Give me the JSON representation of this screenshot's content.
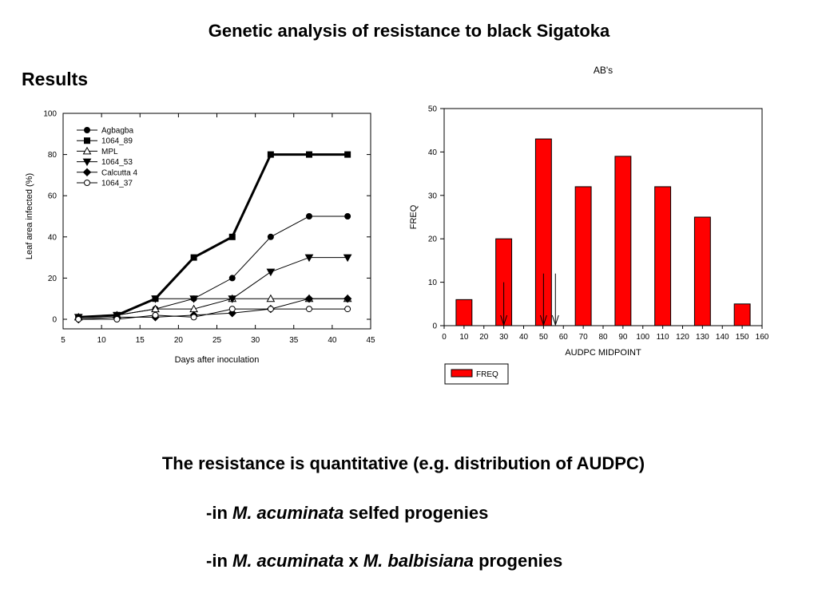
{
  "slide": {
    "title": "Genetic analysis of resistance to black Sigatoka",
    "section": "Results",
    "summary": "The resistance is quantitative (e.g. distribution of AUDPC)",
    "point1": {
      "prefix": "-in ",
      "species": "M. acuminata",
      "suffix": " selfed progenies"
    },
    "point2": {
      "prefix": "-in ",
      "species1": "M. acuminata",
      "joiner": " x ",
      "species2": "M. balbisiana",
      "suffix": "  progenies"
    }
  },
  "chart_data": [
    {
      "type": "line",
      "title": "",
      "xlabel": "Days after inoculation",
      "ylabel": "Leaf area infected (%)",
      "xlim": [
        5,
        45
      ],
      "ylim": [
        0,
        100
      ],
      "xticks": [
        5,
        10,
        15,
        20,
        25,
        30,
        35,
        40,
        45
      ],
      "yticks": [
        0,
        20,
        40,
        60,
        80,
        100
      ],
      "legend_position": "top-left",
      "x": [
        7,
        12,
        17,
        22,
        27,
        32,
        37,
        42
      ],
      "series": [
        {
          "name": "Agbagba",
          "marker": "circle-filled",
          "values": [
            1,
            2,
            5,
            10,
            20,
            40,
            50,
            50
          ]
        },
        {
          "name": "1064_89",
          "marker": "square-filled",
          "values": [
            1,
            2,
            10,
            30,
            40,
            80,
            80,
            80
          ]
        },
        {
          "name": "MPL",
          "marker": "triangle-up-open",
          "values": [
            1,
            2,
            5,
            5,
            10,
            10,
            10,
            10
          ]
        },
        {
          "name": "1064_53",
          "marker": "triangle-down-filled",
          "values": [
            1,
            2,
            10,
            10,
            10,
            23,
            30,
            30
          ]
        },
        {
          "name": "Calcutta 4",
          "marker": "diamond-filled",
          "values": [
            0,
            1,
            1,
            2,
            3,
            5,
            10,
            10
          ]
        },
        {
          "name": "1064_37",
          "marker": "circle-open",
          "values": [
            0,
            0,
            2,
            1,
            5,
            5,
            5,
            5
          ]
        }
      ]
    },
    {
      "type": "bar",
      "title": "AB's",
      "xlabel": "AUDPC MIDPOINT",
      "ylabel": "FREQ",
      "xlim": [
        0,
        160
      ],
      "ylim": [
        0,
        50
      ],
      "xticks": [
        0,
        10,
        20,
        30,
        40,
        50,
        60,
        70,
        80,
        90,
        100,
        110,
        120,
        130,
        140,
        150,
        160
      ],
      "yticks": [
        0,
        10,
        20,
        30,
        40,
        50
      ],
      "bar_width": 8,
      "bar_color": "#ff0000",
      "legend": "FREQ",
      "legend_position": "below",
      "x": [
        10,
        30,
        50,
        70,
        90,
        110,
        130,
        150
      ],
      "values": [
        6,
        20,
        43,
        32,
        39,
        32,
        25,
        5
      ],
      "arrows_at_x": [
        30,
        50,
        56
      ]
    }
  ]
}
